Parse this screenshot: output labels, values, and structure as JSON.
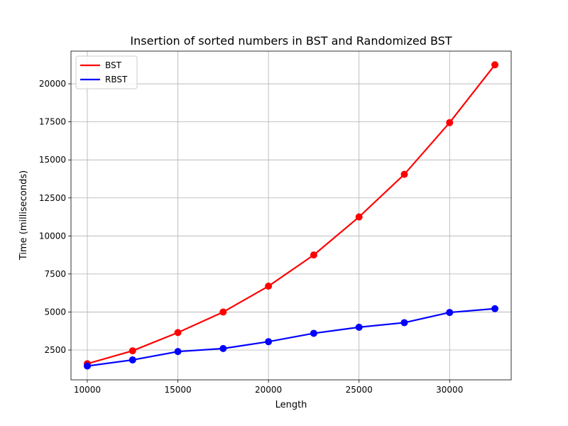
{
  "chart_data": {
    "type": "line",
    "title": "Insertion of sorted numbers in BST and Randomized BST",
    "xlabel": "Length",
    "ylabel": "Time (milliseconds)",
    "x": [
      10000,
      12500,
      15000,
      17500,
      20000,
      22500,
      25000,
      27500,
      30000,
      32500
    ],
    "xlim": [
      9100,
      33400
    ],
    "ylim": [
      540,
      22150
    ],
    "x_ticks": [
      10000,
      15000,
      20000,
      25000,
      30000
    ],
    "y_ticks": [
      2500,
      5000,
      7500,
      10000,
      12500,
      15000,
      17500,
      20000
    ],
    "grid": true,
    "legend_position": "top-left",
    "series": [
      {
        "name": "BST",
        "color": "#ff0000",
        "values": [
          1600,
          2450,
          3650,
          5000,
          6700,
          8750,
          11250,
          14050,
          17450,
          21250
        ]
      },
      {
        "name": "RBST",
        "color": "#0000ff",
        "values": [
          1450,
          1850,
          2400,
          2600,
          3050,
          3600,
          4000,
          4300,
          4970,
          5220
        ]
      }
    ]
  }
}
